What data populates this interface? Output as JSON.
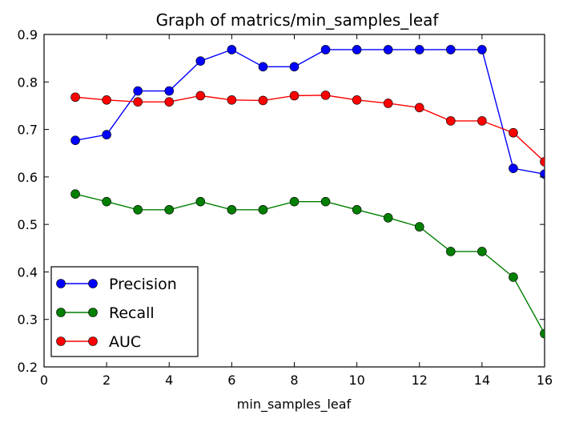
{
  "chart_data": {
    "type": "line",
    "title": "Graph of matrics/min_samples_leaf",
    "xlabel": "min_samples_leaf",
    "ylabel": "",
    "xlim": [
      0,
      16
    ],
    "ylim": [
      0.2,
      0.9
    ],
    "xticks": [
      0,
      2,
      4,
      6,
      8,
      10,
      12,
      14,
      16
    ],
    "yticks": [
      0.2,
      0.3,
      0.4,
      0.5,
      0.6,
      0.7,
      0.8,
      0.9
    ],
    "grid": false,
    "legend_position": "lower-left",
    "x": [
      1,
      2,
      3,
      4,
      5,
      6,
      7,
      8,
      9,
      10,
      11,
      12,
      13,
      14,
      15,
      16
    ],
    "series": [
      {
        "name": "Precision",
        "color": "#0000ff",
        "values": [
          0.677,
          0.689,
          0.781,
          0.781,
          0.844,
          0.868,
          0.832,
          0.832,
          0.868,
          0.868,
          0.868,
          0.868,
          0.868,
          0.868,
          0.618,
          0.606
        ]
      },
      {
        "name": "Recall",
        "color": "#007f00",
        "values": [
          0.564,
          0.548,
          0.531,
          0.531,
          0.548,
          0.531,
          0.531,
          0.548,
          0.548,
          0.531,
          0.514,
          0.495,
          0.443,
          0.443,
          0.389,
          0.27
        ]
      },
      {
        "name": "AUC",
        "color": "#ff0000",
        "values": [
          0.768,
          0.762,
          0.758,
          0.758,
          0.771,
          0.762,
          0.761,
          0.771,
          0.772,
          0.762,
          0.755,
          0.746,
          0.718,
          0.718,
          0.693,
          0.632
        ]
      }
    ]
  }
}
